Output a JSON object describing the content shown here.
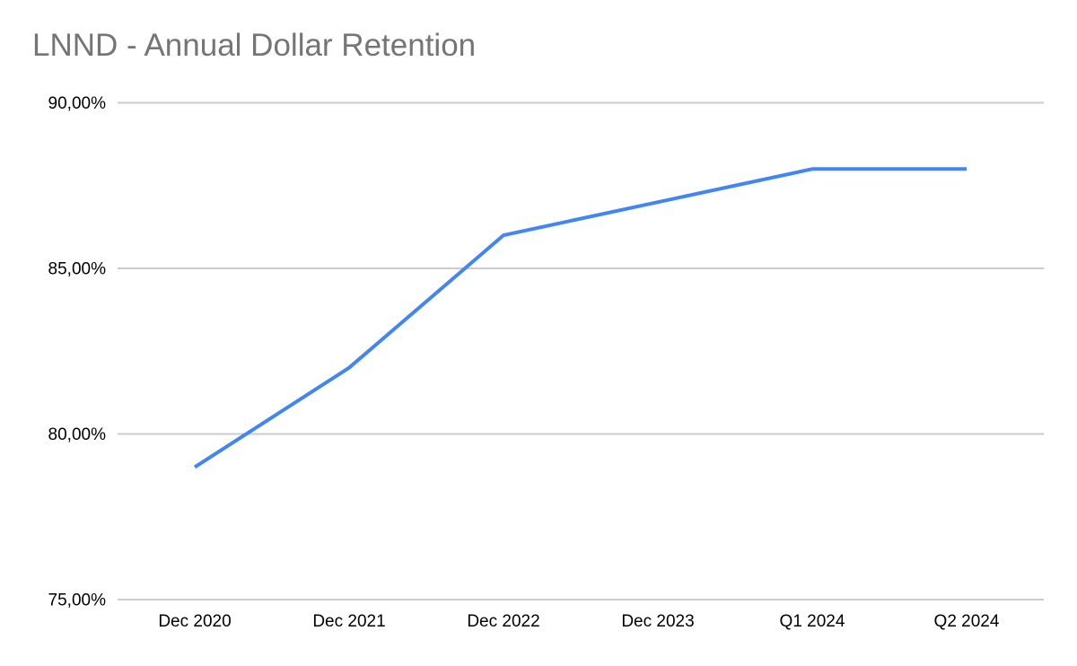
{
  "chart_data": {
    "type": "line",
    "title": "LNND - Annual Dollar Retention",
    "categories": [
      "Dec 2020",
      "Dec 2021",
      "Dec 2022",
      "Dec 2023",
      "Q1 2024",
      "Q2 2024"
    ],
    "values": [
      79,
      82,
      86,
      87,
      88,
      88
    ],
    "yticks": [
      {
        "value": 75,
        "label": "75,00%"
      },
      {
        "value": 80,
        "label": "80,00%"
      },
      {
        "value": 85,
        "label": "85,00%"
      },
      {
        "value": 90,
        "label": "90,00%"
      }
    ],
    "ylim": [
      75,
      90
    ],
    "xlabel": "",
    "ylabel": "",
    "grid": true,
    "legend": "none",
    "colors": {
      "line": "#4285f4",
      "grid": "#cccccc",
      "title": "#757575",
      "tick_label": "#000000",
      "background": "#ffffff"
    }
  }
}
